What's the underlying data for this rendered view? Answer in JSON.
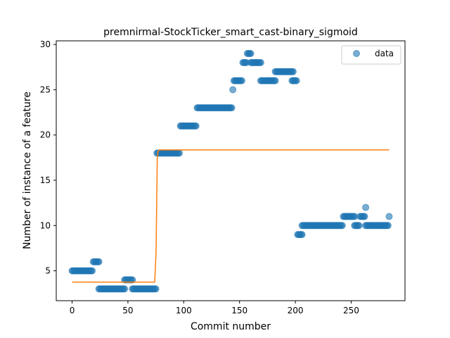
{
  "chart_data": {
    "type": "scatter",
    "title": "premnirmal-StockTicker_smart_cast-binary_sigmoid",
    "xlabel": "Commit number",
    "ylabel": "Number of instance of a feature",
    "xlim": [
      -14.2,
      298.2
    ],
    "ylim": [
      1.7,
      30.4
    ],
    "xticks": [
      0,
      50,
      100,
      150,
      200,
      250
    ],
    "yticks": [
      5,
      10,
      15,
      20,
      25,
      30
    ],
    "legend_position": "top-right",
    "series": [
      {
        "name": "data",
        "kind": "scatter",
        "color": "#1f77b4",
        "runs": [
          {
            "x_start": 0,
            "x_end": 18,
            "y": 5
          },
          {
            "x_start": 19,
            "x_end": 24,
            "y": 6
          },
          {
            "x_start": 24,
            "x_end": 47,
            "y": 3
          },
          {
            "x_start": 47,
            "x_end": 54,
            "y": 4
          },
          {
            "x_start": 54,
            "x_end": 75,
            "y": 3
          },
          {
            "x_start": 76,
            "x_end": 96,
            "y": 18
          },
          {
            "x_start": 97,
            "x_end": 111,
            "y": 21
          },
          {
            "x_start": 112,
            "x_end": 143,
            "y": 23
          },
          {
            "x_start": 144,
            "x_end": 144,
            "y": 25
          },
          {
            "x_start": 145,
            "x_end": 152,
            "y": 26
          },
          {
            "x_start": 153,
            "x_end": 156,
            "y": 28
          },
          {
            "x_start": 157,
            "x_end": 160,
            "y": 29
          },
          {
            "x_start": 160,
            "x_end": 169,
            "y": 28
          },
          {
            "x_start": 169,
            "x_end": 182,
            "y": 26
          },
          {
            "x_start": 182,
            "x_end": 198,
            "y": 27
          },
          {
            "x_start": 197,
            "x_end": 201,
            "y": 26
          },
          {
            "x_start": 202,
            "x_end": 206,
            "y": 9
          },
          {
            "x_start": 206,
            "x_end": 242,
            "y": 10
          },
          {
            "x_start": 243,
            "x_end": 253,
            "y": 11
          },
          {
            "x_start": 253,
            "x_end": 257,
            "y": 10
          },
          {
            "x_start": 258,
            "x_end": 262,
            "y": 11
          },
          {
            "x_start": 263,
            "x_end": 263,
            "y": 12
          },
          {
            "x_start": 263,
            "x_end": 283,
            "y": 10
          },
          {
            "x_start": 284,
            "x_end": 284,
            "y": 11
          }
        ]
      },
      {
        "name": "",
        "kind": "line",
        "color": "#ff7f0e",
        "points": [
          [
            0,
            3.75
          ],
          [
            74,
            3.75
          ],
          [
            75.2,
            7.0
          ],
          [
            76.3,
            17.5
          ],
          [
            77,
            18.2
          ],
          [
            78,
            18.35
          ],
          [
            284,
            18.35
          ]
        ]
      }
    ]
  }
}
